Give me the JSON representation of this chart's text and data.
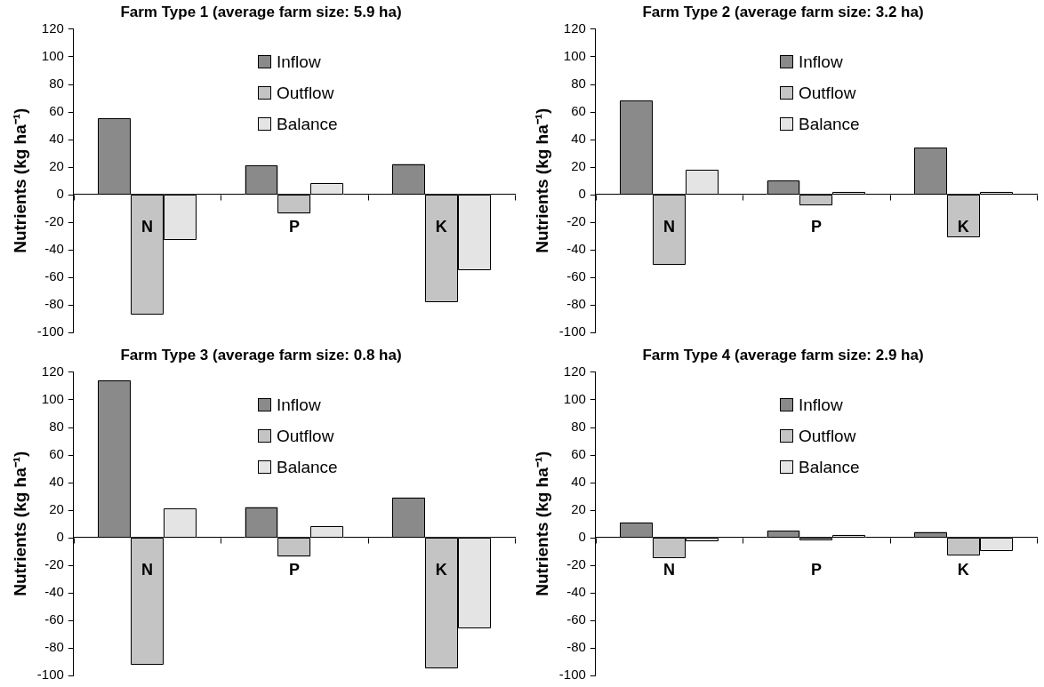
{
  "chart_data": [
    {
      "type": "bar",
      "title": "Farm Type 1 (average farm size: 5.9 ha)",
      "ylabel": "Nutrients (kg ha⁻¹)",
      "categories": [
        "N",
        "P",
        "K"
      ],
      "ylim": [
        -100,
        120
      ],
      "yticks": [
        -100,
        -80,
        -60,
        -40,
        -20,
        0,
        20,
        40,
        60,
        80,
        100,
        120
      ],
      "grid": false,
      "legend": "top",
      "series": [
        {
          "name": "Inflow",
          "color": "#8a8a8a",
          "values": [
            55,
            21,
            22
          ]
        },
        {
          "name": "Outflow",
          "color": "#c4c4c4",
          "values": [
            -87,
            -14,
            -78
          ]
        },
        {
          "name": "Balance",
          "color": "#e4e4e4",
          "values": [
            -33,
            8,
            -55
          ]
        }
      ]
    },
    {
      "type": "bar",
      "title": "Farm Type 2 (average farm size: 3.2 ha)",
      "ylabel": "Nutrients (kg ha⁻¹)",
      "categories": [
        "N",
        "P",
        "K"
      ],
      "ylim": [
        -100,
        120
      ],
      "yticks": [
        -100,
        -80,
        -60,
        -40,
        -20,
        0,
        20,
        40,
        60,
        80,
        100,
        120
      ],
      "grid": false,
      "legend": "top",
      "series": [
        {
          "name": "Inflow",
          "color": "#8a8a8a",
          "values": [
            68,
            10,
            34
          ]
        },
        {
          "name": "Outflow",
          "color": "#c4c4c4",
          "values": [
            -51,
            -8,
            -31
          ]
        },
        {
          "name": "Balance",
          "color": "#e4e4e4",
          "values": [
            18,
            2,
            2
          ]
        }
      ]
    },
    {
      "type": "bar",
      "title": "Farm Type 3 (average farm size: 0.8 ha)",
      "ylabel": "Nutrients (kg ha⁻¹)",
      "categories": [
        "N",
        "P",
        "K"
      ],
      "ylim": [
        -100,
        120
      ],
      "yticks": [
        -100,
        -80,
        -60,
        -40,
        -20,
        0,
        20,
        40,
        60,
        80,
        100,
        120
      ],
      "grid": false,
      "legend": "top",
      "series": [
        {
          "name": "Inflow",
          "color": "#8a8a8a",
          "values": [
            114,
            22,
            29
          ]
        },
        {
          "name": "Outflow",
          "color": "#c4c4c4",
          "values": [
            -92,
            -14,
            -95
          ]
        },
        {
          "name": "Balance",
          "color": "#e4e4e4",
          "values": [
            21,
            8,
            -66
          ]
        }
      ]
    },
    {
      "type": "bar",
      "title": "Farm Type 4 (average farm size: 2.9 ha)",
      "ylabel": "Nutrients (kg ha⁻¹)",
      "categories": [
        "N",
        "P",
        "K"
      ],
      "ylim": [
        -100,
        120
      ],
      "yticks": [
        -100,
        -80,
        -60,
        -40,
        -20,
        0,
        20,
        40,
        60,
        80,
        100,
        120
      ],
      "grid": false,
      "legend": "top",
      "series": [
        {
          "name": "Inflow",
          "color": "#8a8a8a",
          "values": [
            11,
            5,
            4
          ]
        },
        {
          "name": "Outflow",
          "color": "#c4c4c4",
          "values": [
            -15,
            -2,
            -13
          ]
        },
        {
          "name": "Balance",
          "color": "#e4e4e4",
          "values": [
            -3,
            2,
            -10
          ]
        }
      ]
    }
  ]
}
